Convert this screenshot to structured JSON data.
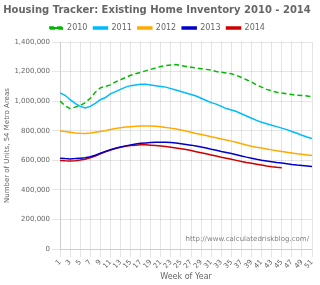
{
  "chart_data": {
    "type": "line",
    "title": "Housing Tracker: Existing Home Inventory 2010 - 2014",
    "x_label": "Week of Year",
    "y_label": "Number of Units, 54 Metro Areas",
    "annotation": "http://www.calculatedriskblog.com/",
    "xlim": [
      1,
      51
    ],
    "xticks": [
      1,
      3,
      5,
      7,
      9,
      11,
      13,
      15,
      17,
      19,
      21,
      23,
      25,
      27,
      29,
      31,
      33,
      35,
      37,
      39,
      41,
      43,
      45,
      47,
      49,
      51
    ],
    "ylim": [
      0,
      1400000
    ],
    "yticks": [
      0,
      {
        "value": 200000,
        "label": "200,000"
      },
      {
        "value": 400000,
        "label": "400,000"
      },
      {
        "value": 600000,
        "label": "600,000"
      },
      {
        "value": 800000,
        "label": "800,000"
      },
      {
        "value": 1000000,
        "label": "1,000,000"
      },
      {
        "value": 1200000,
        "label": "1,200,000"
      },
      {
        "value": 1400000,
        "label": "1,400,000"
      }
    ],
    "grid": true,
    "legend": "top",
    "series": [
      {
        "name": "2010",
        "color": "#00bb00",
        "line_style": "dashed",
        "x": [
          1,
          2,
          3,
          4,
          5,
          6,
          7,
          8,
          9,
          10,
          11,
          12,
          13,
          14,
          15,
          16,
          17,
          18,
          19,
          20,
          21,
          22,
          23,
          24,
          25,
          26,
          27,
          28,
          29,
          30,
          31,
          32,
          33,
          34,
          35,
          36,
          37,
          38,
          39,
          40,
          41,
          42,
          43,
          44,
          45,
          46,
          47,
          48,
          49,
          50,
          51
        ],
        "values": [
          1000000,
          970000,
          950000,
          960000,
          970000,
          990000,
          1020000,
          1060000,
          1090000,
          1100000,
          1110000,
          1130000,
          1145000,
          1160000,
          1175000,
          1185000,
          1195000,
          1205000,
          1215000,
          1225000,
          1235000,
          1240000,
          1245000,
          1248000,
          1240000,
          1235000,
          1230000,
          1225000,
          1220000,
          1215000,
          1210000,
          1200000,
          1195000,
          1190000,
          1185000,
          1175000,
          1160000,
          1145000,
          1130000,
          1110000,
          1095000,
          1080000,
          1070000,
          1060000,
          1055000,
          1050000,
          1045000,
          1040000,
          1038000,
          1035000,
          1030000
        ]
      },
      {
        "name": "2011",
        "color": "#00bbff",
        "line_style": "solid",
        "x": [
          1,
          2,
          3,
          4,
          5,
          6,
          7,
          8,
          9,
          10,
          11,
          12,
          13,
          14,
          15,
          16,
          17,
          18,
          19,
          20,
          21,
          22,
          23,
          24,
          25,
          26,
          27,
          28,
          29,
          30,
          31,
          32,
          33,
          34,
          35,
          36,
          37,
          38,
          39,
          40,
          41,
          42,
          43,
          44,
          45,
          46,
          47,
          48,
          49,
          50,
          51
        ],
        "values": [
          1055000,
          1040000,
          1010000,
          985000,
          965000,
          955000,
          965000,
          985000,
          1010000,
          1025000,
          1050000,
          1065000,
          1080000,
          1095000,
          1105000,
          1110000,
          1115000,
          1115000,
          1110000,
          1105000,
          1100000,
          1095000,
          1085000,
          1075000,
          1065000,
          1055000,
          1045000,
          1035000,
          1020000,
          1005000,
          990000,
          980000,
          965000,
          950000,
          940000,
          930000,
          915000,
          900000,
          885000,
          870000,
          858000,
          848000,
          838000,
          828000,
          818000,
          808000,
          795000,
          783000,
          770000,
          758000,
          748000
        ]
      },
      {
        "name": "2012",
        "color": "#ffaa00",
        "line_style": "solid",
        "x": [
          1,
          2,
          3,
          4,
          5,
          6,
          7,
          8,
          9,
          10,
          11,
          12,
          13,
          14,
          15,
          16,
          17,
          18,
          19,
          20,
          21,
          22,
          23,
          24,
          25,
          26,
          27,
          28,
          29,
          30,
          31,
          32,
          33,
          34,
          35,
          36,
          37,
          38,
          39,
          40,
          41,
          42,
          43,
          44,
          45,
          46,
          47,
          48,
          49,
          50,
          51
        ],
        "values": [
          800000,
          795000,
          790000,
          785000,
          783000,
          782000,
          785000,
          790000,
          795000,
          800000,
          808000,
          815000,
          820000,
          825000,
          828000,
          830000,
          832000,
          833000,
          832000,
          830000,
          827000,
          822000,
          818000,
          812000,
          806000,
          798000,
          790000,
          782000,
          775000,
          768000,
          760000,
          753000,
          745000,
          738000,
          730000,
          722000,
          713000,
          704000,
          696000,
          689000,
          683000,
          677000,
          671000,
          665000,
          660000,
          655000,
          650000,
          645000,
          641000,
          637000,
          633000
        ]
      },
      {
        "name": "2013",
        "color": "#0000cc",
        "line_style": "solid",
        "x": [
          1,
          2,
          3,
          4,
          5,
          6,
          7,
          8,
          9,
          10,
          11,
          12,
          13,
          14,
          15,
          16,
          17,
          18,
          19,
          20,
          21,
          22,
          23,
          24,
          25,
          26,
          27,
          28,
          29,
          30,
          31,
          32,
          33,
          34,
          35,
          36,
          37,
          38,
          39,
          40,
          41,
          42,
          43,
          44,
          45,
          46,
          47,
          48,
          49,
          50,
          51
        ],
        "values": [
          615000,
          612000,
          610000,
          612000,
          615000,
          618000,
          625000,
          635000,
          648000,
          660000,
          672000,
          682000,
          690000,
          698000,
          704000,
          710000,
          715000,
          718000,
          720000,
          722000,
          723000,
          722000,
          720000,
          717000,
          713000,
          708000,
          703000,
          697000,
          690000,
          683000,
          675000,
          668000,
          660000,
          653000,
          646000,
          638000,
          630000,
          622000,
          615000,
          607000,
          601000,
          596000,
          591000,
          586000,
          582000,
          577000,
          572000,
          568000,
          565000,
          562000,
          559000
        ]
      },
      {
        "name": "2014",
        "color": "#cc0000",
        "line_style": "solid",
        "x": [
          1,
          2,
          3,
          4,
          5,
          6,
          7,
          8,
          9,
          10,
          11,
          12,
          13,
          14,
          15,
          16,
          17,
          18,
          19,
          20,
          21,
          22,
          23,
          24,
          25,
          26,
          27,
          28,
          29,
          30,
          31,
          32,
          33,
          34,
          35,
          36,
          37,
          38,
          39,
          40,
          41,
          42,
          43,
          44,
          45
        ],
        "values": [
          600000,
          597000,
          596000,
          598000,
          602000,
          608000,
          618000,
          630000,
          645000,
          658000,
          670000,
          680000,
          688000,
          695000,
          700000,
          703000,
          705000,
          705000,
          703000,
          700000,
          697000,
          693000,
          689000,
          684000,
          679000,
          673000,
          666000,
          659000,
          652000,
          645000,
          637000,
          629000,
          621000,
          614000,
          607000,
          600000,
          593000,
          586000,
          580000,
          574000,
          568000,
          562000,
          557000,
          553000,
          550000
        ]
      }
    ]
  }
}
